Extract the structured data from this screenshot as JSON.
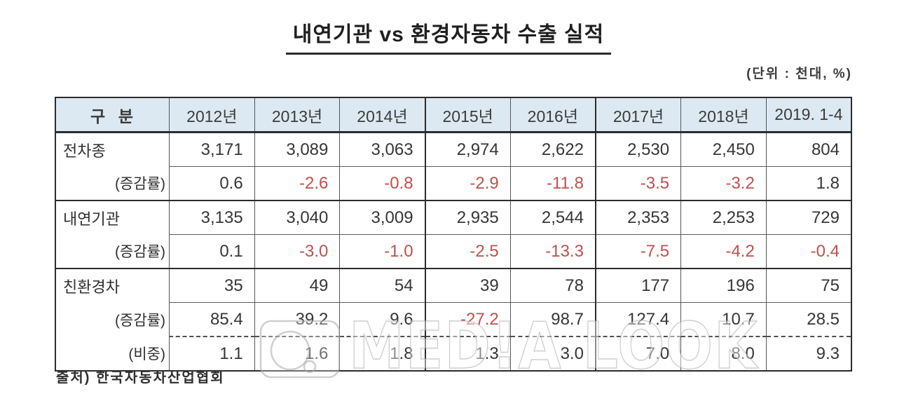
{
  "title": "내연기관 vs 환경자동차 수출 실적",
  "unit_note": "(단위 : 천대, %)",
  "source": "출처) 한국자동차산업협회",
  "watermark": "MED!A LOOK",
  "colors": {
    "header_bg": "#dce9f2",
    "border_dark": "#2c2c2c",
    "negative_red": "#c0504d",
    "text": "#363636"
  },
  "chart_data": {
    "type": "table",
    "title": "내연기관 vs 환경자동차 수출 실적",
    "unit": "(단위 : 천대, %)",
    "corner_label": "구  분",
    "columns": [
      "2012년",
      "2013년",
      "2014년",
      "2015년",
      "2016년",
      "2017년",
      "2018년",
      "2019. 1-4"
    ],
    "thick_column_dividers_before": [
      3,
      5
    ],
    "groups": [
      {
        "rows": [
          {
            "label": "전차종",
            "format": "int",
            "values": [
              3171,
              3089,
              3063,
              2974,
              2622,
              2530,
              2450,
              804
            ]
          },
          {
            "label": "(증감률)",
            "format": "pct1",
            "values": [
              0.6,
              -2.6,
              -0.8,
              -2.9,
              -11.8,
              -3.5,
              -3.2,
              1.8
            ]
          }
        ]
      },
      {
        "rows": [
          {
            "label": "내연기관",
            "format": "int",
            "values": [
              3135,
              3040,
              3009,
              2935,
              2544,
              2353,
              2253,
              729
            ]
          },
          {
            "label": "(증감률)",
            "format": "pct1",
            "values": [
              0.1,
              -3.0,
              -1.0,
              -2.5,
              -13.3,
              -7.5,
              -4.2,
              -0.4
            ]
          }
        ]
      },
      {
        "rows": [
          {
            "label": "친환경차",
            "format": "int",
            "values": [
              35,
              49,
              54,
              39,
              78,
              177,
              196,
              75
            ]
          },
          {
            "label": "(증감률)",
            "format": "pct1",
            "values": [
              85.4,
              39.2,
              9.6,
              -27.2,
              98.7,
              127.4,
              10.7,
              28.5
            ]
          },
          {
            "label": "(비중)",
            "format": "pct1",
            "dashed_top": true,
            "values": [
              1.1,
              1.6,
              1.8,
              1.3,
              3.0,
              7.0,
              8.0,
              9.3
            ]
          }
        ]
      }
    ],
    "source": "출처) 한국자동차산업협회"
  }
}
